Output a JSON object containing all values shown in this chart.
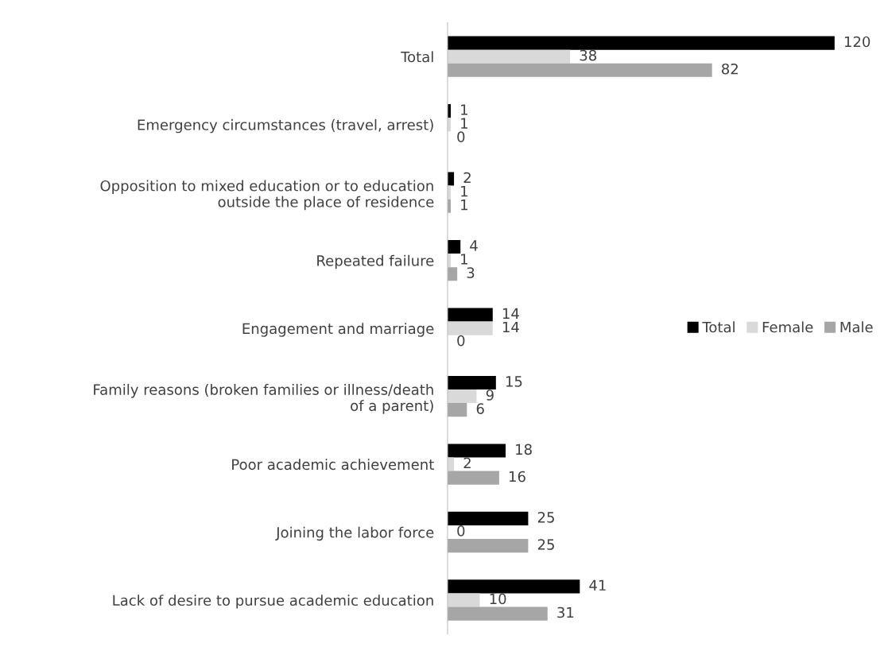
{
  "chart_data": {
    "type": "bar",
    "orientation": "horizontal",
    "categories": [
      "Total",
      "Emergency circumstances (travel, arrest)",
      "Opposition to mixed education or to education outside the place of residence",
      "Repeated failure",
      "Engagement and marriage",
      "Family reasons (broken families or illness/death of a parent)",
      "Poor academic achievement",
      "Joining the labor force",
      "Lack of desire to pursue academic education"
    ],
    "series": [
      {
        "name": "Total",
        "color": "#000000",
        "values": [
          120,
          1,
          2,
          4,
          14,
          15,
          18,
          25,
          41
        ]
      },
      {
        "name": "Female",
        "color": "#d9d9d9",
        "values": [
          38,
          1,
          1,
          1,
          14,
          9,
          2,
          0,
          10
        ]
      },
      {
        "name": "Male",
        "color": "#a6a6a6",
        "values": [
          82,
          0,
          1,
          3,
          0,
          6,
          16,
          25,
          31
        ]
      }
    ],
    "data_labels": true,
    "legend": "right",
    "grid": false,
    "tick_labels": "y"
  }
}
